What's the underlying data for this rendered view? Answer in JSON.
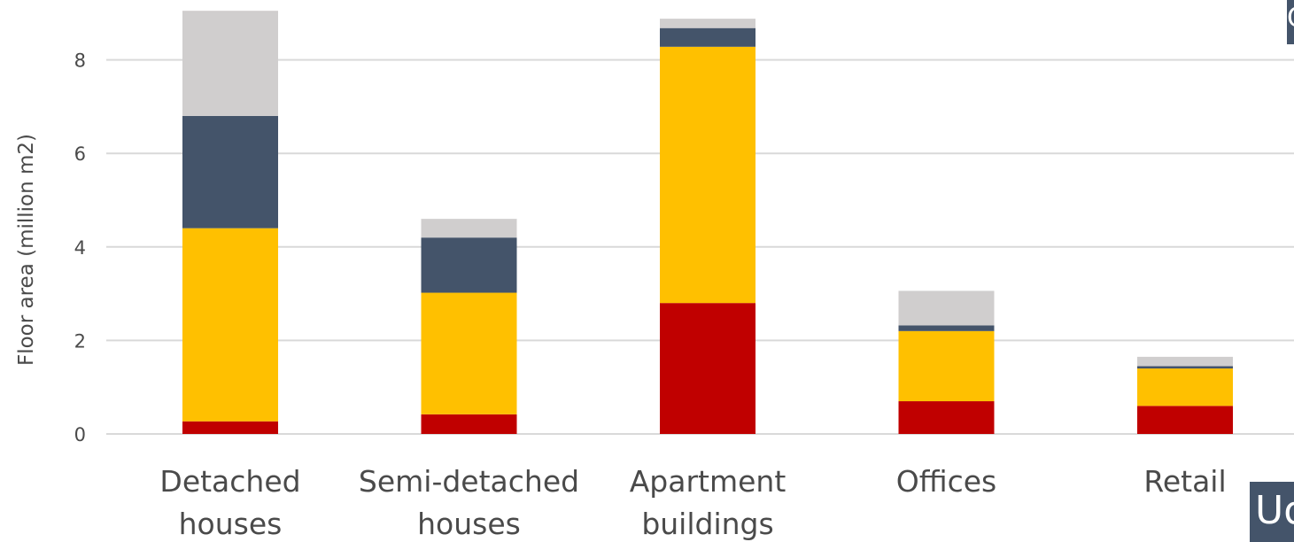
{
  "chart_data": {
    "type": "bar",
    "stacked": true,
    "title": "",
    "xlabel": "",
    "ylabel": "Floor area (million m2)",
    "ylim": [
      0,
      9
    ],
    "yticks": [
      0,
      2,
      4,
      6,
      8
    ],
    "grid": true,
    "legend": "none",
    "categories": [
      [
        "Detached",
        "houses"
      ],
      [
        "Semi-detached",
        "houses"
      ],
      [
        "Apartment",
        "buildings"
      ],
      [
        "Offices"
      ],
      [
        "Retail"
      ]
    ],
    "series": [
      {
        "color": "#c00000",
        "values": [
          0.27,
          0.42,
          2.8,
          0.7,
          0.6
        ]
      },
      {
        "color": "#ffc000",
        "values": [
          4.13,
          2.6,
          5.48,
          1.5,
          0.8
        ]
      },
      {
        "color": "#44546a",
        "values": [
          2.4,
          1.18,
          0.4,
          0.12,
          0.05
        ]
      },
      {
        "color": "#d0cece",
        "values": [
          2.25,
          0.4,
          0.2,
          0.74,
          0.2
        ]
      }
    ]
  },
  "overlays": {
    "top_right_text": "C",
    "bottom_right_text": "Ud"
  }
}
